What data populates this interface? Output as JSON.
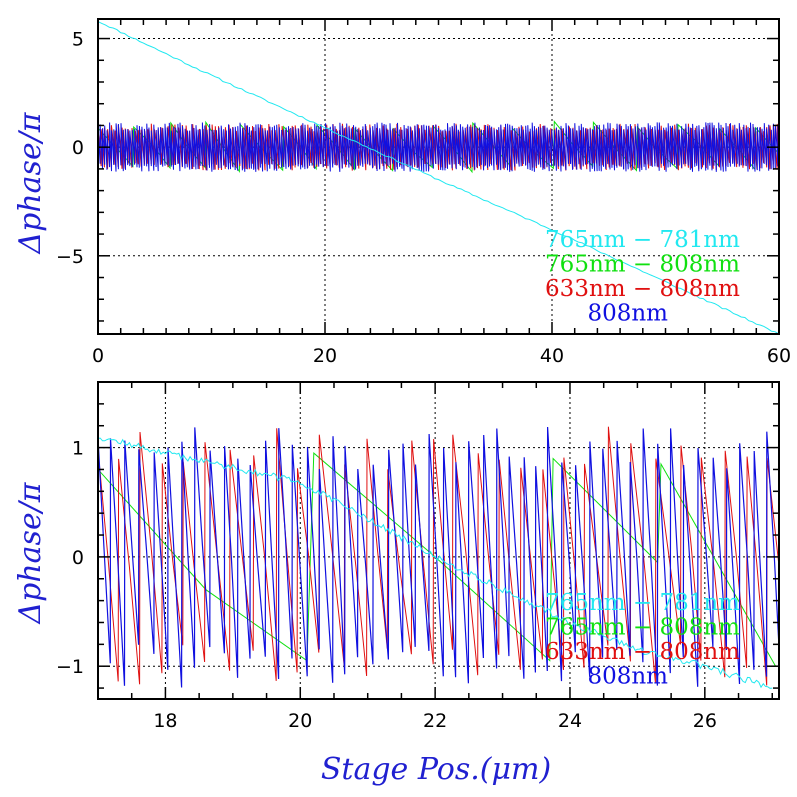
{
  "xlabel": "Stage Pos.(μm)",
  "colors": {
    "765nm - 781nm": "#22e8f0",
    "765nm - 808nm": "#10e010",
    "633nm - 808nm": "#e01010",
    "808nm": "#1010e0",
    "axis_title": "#2020d0"
  },
  "chart_data": [
    {
      "type": "line",
      "title": "",
      "xlabel": "",
      "ylabel": "Δphase/π",
      "xlim": [
        0,
        60
      ],
      "ylim": [
        -8.6,
        5.9
      ],
      "xticks": [
        0,
        20,
        40,
        60
      ],
      "yticks": [
        -5,
        0,
        5
      ],
      "xtick_labels": [
        "0",
        "20",
        "40",
        "60"
      ],
      "ytick_labels": [
        "−5",
        "0",
        "5"
      ],
      "grid": true,
      "legend_position": "bottom-right",
      "legend": [
        "765nm − 781nm",
        "765nm − 808nm",
        "633nm − 808nm",
        "808nm"
      ],
      "series": [
        {
          "name": "765nm − 781nm",
          "x": [
            0,
            10,
            20,
            30,
            40,
            50,
            60
          ],
          "y": [
            5.8,
            3.3,
            0.9,
            -1.5,
            -3.8,
            -6.2,
            -8.6
          ]
        },
        {
          "name": "765nm − 808nm",
          "x": [
            0,
            60
          ],
          "y": [
            1.0,
            -1.0
          ],
          "note": "sawtooth, period ≈ 3.4 μm"
        },
        {
          "name": "633nm − 808nm",
          "x": [
            0,
            60
          ],
          "y": [
            1.0,
            -1.0
          ],
          "note": "sawtooth, period ≈ 0.3 μm"
        },
        {
          "name": "808nm",
          "x": [
            0,
            60
          ],
          "y": [
            1.0,
            -1.0
          ],
          "note": "sawtooth, period ≈ 0.2 μm"
        }
      ]
    },
    {
      "type": "line",
      "title": "",
      "xlabel": "Stage Pos.(μm)",
      "ylabel": "Δphase/π",
      "xlim": [
        17,
        27.1
      ],
      "ylim": [
        -1.3,
        1.6
      ],
      "xticks": [
        18,
        20,
        22,
        24,
        26
      ],
      "yticks": [
        -1,
        0,
        1
      ],
      "xtick_labels": [
        "18",
        "20",
        "22",
        "24",
        "26"
      ],
      "ytick_labels": [
        "−1",
        "0",
        "1"
      ],
      "grid": true,
      "legend_position": "bottom-right",
      "legend": [
        "765nm − 781nm",
        "765nm − 808nm",
        "633nm − 808nm",
        "808nm"
      ],
      "series": [
        {
          "name": "765nm − 781nm",
          "x": [
            17,
            18,
            19,
            20,
            21,
            22,
            23,
            24,
            25,
            26,
            27
          ],
          "y": [
            1.1,
            0.95,
            0.82,
            0.68,
            0.35,
            0.0,
            -0.3,
            -0.6,
            -0.85,
            -1.0,
            -1.2
          ]
        },
        {
          "name": "765nm − 808nm",
          "x": [
            17,
            18.6,
            20.1,
            20.2,
            22,
            23.7,
            23.75,
            25.3,
            25.35,
            27.05
          ],
          "y": [
            0.8,
            -0.3,
            -0.95,
            0.95,
            0.0,
            -0.95,
            0.9,
            -0.05,
            0.85,
            -1.0
          ]
        },
        {
          "name": "633nm − 808nm",
          "x": [
            17,
            27
          ],
          "y": [
            1.0,
            -1.0
          ],
          "note": "sawtooth, period ≈ 0.33 μm"
        },
        {
          "name": "808nm",
          "x": [
            17,
            27
          ],
          "y": [
            1.0,
            -1.0
          ],
          "note": "sawtooth, period ≈ 0.2 μm"
        }
      ]
    }
  ]
}
